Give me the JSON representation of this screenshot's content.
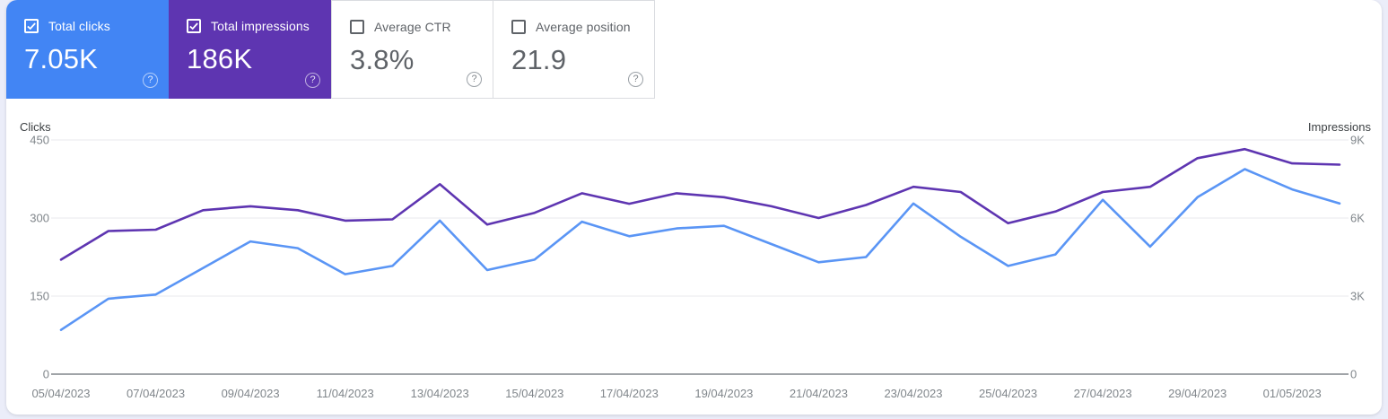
{
  "cards": [
    {
      "label": "Total clicks",
      "value": "7.05K",
      "checked": true,
      "bg": "#4285f4",
      "text_color": "#ffffff"
    },
    {
      "label": "Total impressions",
      "value": "186K",
      "checked": true,
      "bg": "#5e35b1",
      "text_color": "#ffffff"
    },
    {
      "label": "Average CTR",
      "value": "3.8%",
      "checked": false,
      "bg": "#ffffff",
      "text_color": "#5f6368"
    },
    {
      "label": "Average position",
      "value": "21.9",
      "checked": false,
      "bg": "#ffffff",
      "text_color": "#5f6368"
    }
  ],
  "icons": {
    "help_glyph": "?"
  },
  "colors": {
    "page_bg": "#ebedf9",
    "panel_bg": "#ffffff",
    "card_border": "#dadce0",
    "grid": "#e8eaed",
    "axis_line": "#80868b",
    "tick_text": "#80868b",
    "axis_title_text": "#3c4043",
    "clicks_line": "#5a95f5",
    "impressions_line": "#5e35b1"
  },
  "chart_data": {
    "type": "line",
    "x": [
      "05/04/2023",
      "06/04/2023",
      "07/04/2023",
      "08/04/2023",
      "09/04/2023",
      "10/04/2023",
      "11/04/2023",
      "12/04/2023",
      "13/04/2023",
      "14/04/2023",
      "15/04/2023",
      "16/04/2023",
      "17/04/2023",
      "18/04/2023",
      "19/04/2023",
      "20/04/2023",
      "21/04/2023",
      "22/04/2023",
      "23/04/2023",
      "24/04/2023",
      "25/04/2023",
      "26/04/2023",
      "27/04/2023",
      "28/04/2023",
      "29/04/2023",
      "30/04/2023",
      "01/05/2023",
      "02/05/2023"
    ],
    "x_tick_labels": [
      "05/04/2023",
      "07/04/2023",
      "09/04/2023",
      "11/04/2023",
      "13/04/2023",
      "15/04/2023",
      "17/04/2023",
      "19/04/2023",
      "21/04/2023",
      "23/04/2023",
      "25/04/2023",
      "27/04/2023",
      "29/04/2023",
      "01/05/2023"
    ],
    "series": [
      {
        "name": "Clicks",
        "axis": "left",
        "color": "#5a95f5",
        "values": [
          85,
          145,
          153,
          204,
          255,
          242,
          192,
          208,
          295,
          200,
          220,
          293,
          265,
          280,
          285,
          250,
          215,
          225,
          328,
          264,
          208,
          230,
          335,
          245,
          340,
          394,
          355,
          328
        ]
      },
      {
        "name": "Impressions",
        "axis": "right",
        "color": "#5e35b1",
        "values": [
          4400,
          5500,
          5550,
          6300,
          6450,
          6300,
          5900,
          5950,
          7300,
          5750,
          6200,
          6950,
          6550,
          6950,
          6800,
          6450,
          6000,
          6500,
          7200,
          7000,
          5800,
          6250,
          7000,
          7200,
          8300,
          8650,
          8100,
          8050
        ]
      }
    ],
    "left_axis": {
      "title": "Clicks",
      "ticks": [
        "450",
        "300",
        "150",
        "0"
      ],
      "max": 450
    },
    "right_axis": {
      "title": "Impressions",
      "ticks": [
        "9K",
        "6K",
        "3K",
        "0"
      ],
      "max": 9000
    },
    "grid": true,
    "legend": "none"
  }
}
